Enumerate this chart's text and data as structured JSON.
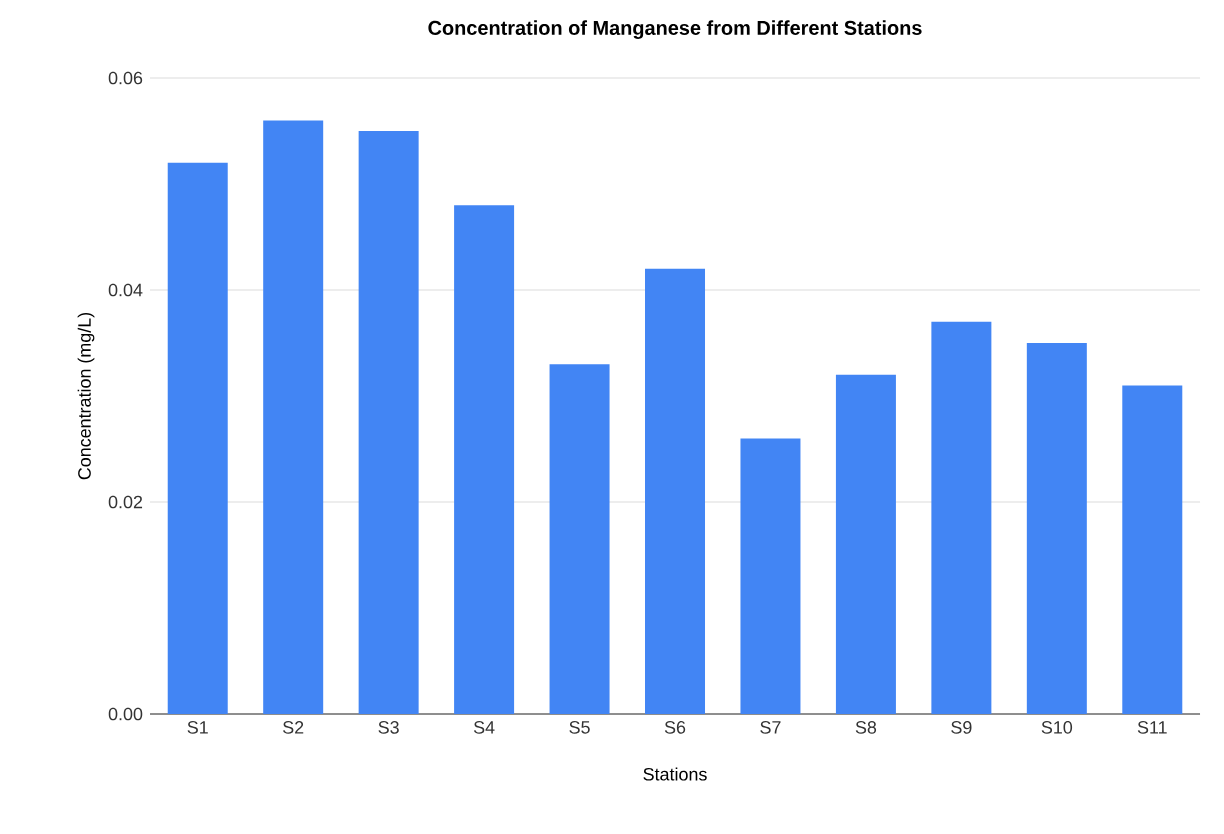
{
  "chart_data": {
    "type": "bar",
    "title": "Concentration of Manganese from Different Stations",
    "xlabel": "Stations",
    "ylabel": "Concentration (mg/L)",
    "categories": [
      "S1",
      "S2",
      "S3",
      "S4",
      "S5",
      "S6",
      "S7",
      "S8",
      "S9",
      "S10",
      "S11"
    ],
    "values": [
      0.052,
      0.056,
      0.055,
      0.048,
      0.033,
      0.042,
      0.026,
      0.032,
      0.037,
      0.035,
      0.031
    ],
    "color": "#4285f4",
    "ylim": [
      0,
      0.06
    ],
    "yticks": [
      {
        "value": 0,
        "label": "0.00"
      },
      {
        "value": 0.02,
        "label": "0.02"
      },
      {
        "value": 0.04,
        "label": "0.04"
      },
      {
        "value": 0.06,
        "label": "0.06"
      }
    ],
    "grid": "y"
  }
}
